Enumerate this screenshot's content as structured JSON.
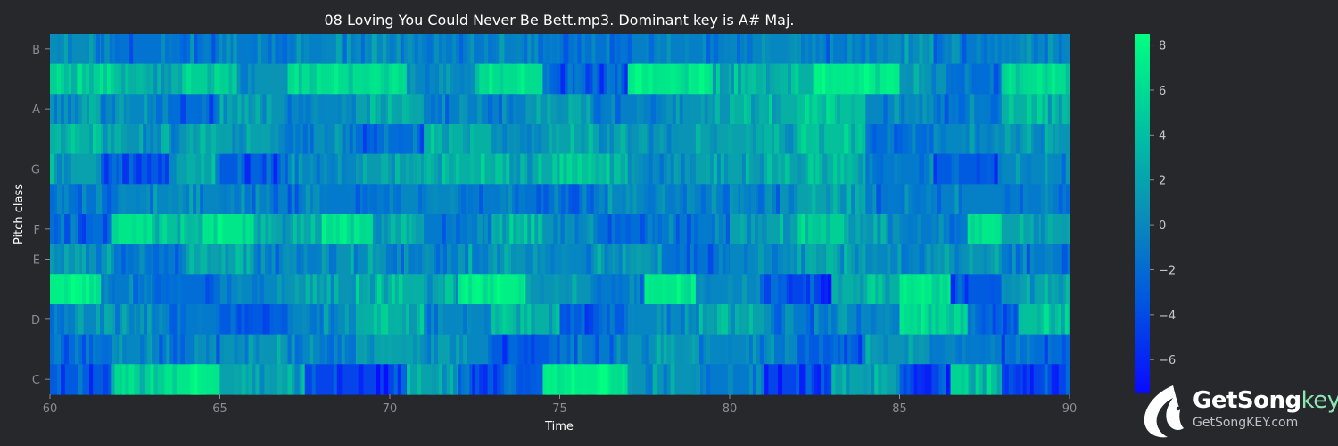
{
  "chart_data": {
    "type": "heatmap",
    "title": "08 Loving You Could Never Be Bett.mp3. Dominant key is A# Maj.",
    "xlabel": "Time",
    "ylabel": "Pitch class",
    "xlim": [
      60,
      90
    ],
    "x_ticks": [
      "60",
      "65",
      "70",
      "75",
      "80",
      "85",
      "90"
    ],
    "pitch_classes": [
      "C",
      "C#",
      "D",
      "D#",
      "E",
      "F",
      "F#",
      "G",
      "G#",
      "A",
      "A#",
      "B"
    ],
    "y_tick_labels": [
      {
        "index": 0,
        "label": "C"
      },
      {
        "index": 2,
        "label": "D"
      },
      {
        "index": 4,
        "label": "E"
      },
      {
        "index": 5,
        "label": "F"
      },
      {
        "index": 7,
        "label": "G"
      },
      {
        "index": 9,
        "label": "A"
      },
      {
        "index": 11,
        "label": "B"
      }
    ],
    "colorbar": {
      "range": [
        -7.5,
        8.5
      ],
      "ticks": [
        "8",
        "6",
        "4",
        "2",
        "0",
        "−2",
        "−4",
        "−6"
      ],
      "tick_values": [
        8,
        6,
        4,
        2,
        0,
        -2,
        -4,
        -6
      ],
      "colormap": [
        "#0a0aff",
        "#0066dd",
        "#0a9ab0",
        "#00d890",
        "#00ff80"
      ]
    },
    "segments": [
      {
        "pitch": "B",
        "blocks": [
          [
            60,
            61.5,
            -0.5
          ],
          [
            61.5,
            63.5,
            -2.5
          ],
          [
            63.5,
            66,
            -2
          ],
          [
            66,
            68,
            -1.5
          ],
          [
            68,
            71,
            -1
          ],
          [
            71,
            73,
            -2
          ],
          [
            73,
            75,
            -1.5
          ],
          [
            75,
            77,
            -2.5
          ],
          [
            77,
            80,
            -1.5
          ],
          [
            80,
            82,
            -1
          ],
          [
            82,
            84,
            -2
          ],
          [
            84,
            86,
            -0.5
          ],
          [
            86,
            88,
            -2
          ],
          [
            88,
            90,
            -1
          ]
        ]
      },
      {
        "pitch": "A#",
        "blocks": [
          [
            60,
            62,
            4
          ],
          [
            62,
            64,
            2
          ],
          [
            64,
            65.5,
            4
          ],
          [
            65.5,
            67,
            0
          ],
          [
            67,
            70.5,
            5
          ],
          [
            70.5,
            72.5,
            -1
          ],
          [
            72.5,
            74.5,
            5
          ],
          [
            74.5,
            77,
            -4
          ],
          [
            77,
            79.5,
            6
          ],
          [
            79.5,
            82.5,
            2
          ],
          [
            82.5,
            85,
            6.5
          ],
          [
            85,
            86.5,
            0
          ],
          [
            86.5,
            88,
            -3
          ],
          [
            88,
            90,
            5
          ]
        ]
      },
      {
        "pitch": "A",
        "blocks": [
          [
            60,
            61.5,
            0
          ],
          [
            61.5,
            63,
            -1
          ],
          [
            63,
            65,
            -3
          ],
          [
            65,
            67,
            0
          ],
          [
            67,
            69,
            -1
          ],
          [
            69,
            71,
            1
          ],
          [
            71,
            74,
            -1.5
          ],
          [
            74,
            76,
            0
          ],
          [
            76,
            78,
            -1.5
          ],
          [
            78,
            80,
            0
          ],
          [
            80,
            82,
            2
          ],
          [
            82,
            84,
            3
          ],
          [
            84,
            86,
            -1
          ],
          [
            86,
            88,
            -2
          ],
          [
            88,
            90,
            2
          ]
        ]
      },
      {
        "pitch": "G#",
        "blocks": [
          [
            60,
            62,
            2
          ],
          [
            62,
            64,
            0
          ],
          [
            64,
            66.5,
            1
          ],
          [
            66.5,
            69,
            -1
          ],
          [
            69,
            71,
            -3
          ],
          [
            71,
            73,
            2
          ],
          [
            73,
            75,
            0
          ],
          [
            75,
            77,
            1
          ],
          [
            77,
            79,
            0
          ],
          [
            79,
            82,
            1
          ],
          [
            82,
            84,
            3
          ],
          [
            84,
            86,
            -3
          ],
          [
            86,
            88,
            -1
          ],
          [
            88,
            90,
            0
          ]
        ]
      },
      {
        "pitch": "G",
        "blocks": [
          [
            60,
            61.5,
            1
          ],
          [
            61.5,
            63.5,
            -4
          ],
          [
            63.5,
            65,
            1
          ],
          [
            65,
            67,
            -4
          ],
          [
            67,
            69,
            -1
          ],
          [
            69,
            71,
            0.5
          ],
          [
            71,
            73,
            2
          ],
          [
            73,
            75,
            1.5
          ],
          [
            75,
            77,
            3
          ],
          [
            77,
            79,
            -1
          ],
          [
            79,
            82,
            1
          ],
          [
            82,
            84,
            2
          ],
          [
            84,
            86,
            -2
          ],
          [
            86,
            88,
            -4
          ],
          [
            88,
            90,
            -1
          ]
        ]
      },
      {
        "pitch": "F#",
        "blocks": [
          [
            60,
            62,
            -2.5
          ],
          [
            62,
            65,
            -1
          ],
          [
            65,
            67,
            -1.5
          ],
          [
            67,
            70,
            -2
          ],
          [
            70,
            72,
            -1
          ],
          [
            72,
            74,
            -2
          ],
          [
            74,
            76,
            -2.5
          ],
          [
            76,
            78,
            -1
          ],
          [
            78,
            80,
            -1.5
          ],
          [
            80,
            82,
            -2
          ],
          [
            82,
            84,
            1
          ],
          [
            84,
            86,
            -2
          ],
          [
            86,
            88,
            -1.5
          ],
          [
            88,
            90,
            -2
          ]
        ]
      },
      {
        "pitch": "F",
        "blocks": [
          [
            60,
            61.8,
            -3
          ],
          [
            61.8,
            63,
            6
          ],
          [
            63,
            64.5,
            3
          ],
          [
            64.5,
            66,
            6
          ],
          [
            66,
            68,
            1
          ],
          [
            68,
            69.5,
            5
          ],
          [
            69.5,
            71,
            1
          ],
          [
            71,
            73,
            -2
          ],
          [
            73,
            74.5,
            2
          ],
          [
            74.5,
            76,
            0
          ],
          [
            76,
            78,
            -3
          ],
          [
            78,
            80,
            -2
          ],
          [
            80,
            82,
            1
          ],
          [
            82,
            83.5,
            4
          ],
          [
            83.5,
            85,
            0
          ],
          [
            85,
            87,
            -2
          ],
          [
            87,
            88,
            6
          ],
          [
            88,
            90,
            1
          ]
        ]
      },
      {
        "pitch": "E",
        "blocks": [
          [
            60,
            62,
            0
          ],
          [
            62,
            64,
            -2
          ],
          [
            64,
            66,
            1
          ],
          [
            66,
            68,
            -1.5
          ],
          [
            68,
            70,
            0
          ],
          [
            70,
            72,
            -2
          ],
          [
            72,
            74,
            0
          ],
          [
            74,
            76,
            -1
          ],
          [
            76,
            78,
            0.5
          ],
          [
            78,
            80,
            -2.5
          ],
          [
            80,
            82,
            -1
          ],
          [
            82,
            84,
            0.5
          ],
          [
            84,
            86,
            -1
          ],
          [
            86,
            88,
            0
          ],
          [
            88,
            90,
            -2
          ]
        ]
      },
      {
        "pitch": "D#",
        "blocks": [
          [
            60,
            61.5,
            7
          ],
          [
            61.5,
            63,
            -2
          ],
          [
            63,
            65,
            -3
          ],
          [
            65,
            67,
            -1
          ],
          [
            67,
            69,
            0
          ],
          [
            69,
            71,
            2
          ],
          [
            71,
            72,
            1
          ],
          [
            72,
            74,
            7
          ],
          [
            74,
            76,
            0
          ],
          [
            76,
            77.5,
            -2
          ],
          [
            77.5,
            79,
            6
          ],
          [
            79,
            81,
            -1
          ],
          [
            81,
            83,
            -5
          ],
          [
            83,
            85,
            2
          ],
          [
            85,
            86.5,
            6
          ],
          [
            86.5,
            88,
            -4
          ],
          [
            88,
            90,
            1
          ]
        ]
      },
      {
        "pitch": "D",
        "blocks": [
          [
            60,
            61.5,
            -1
          ],
          [
            61.5,
            63,
            0
          ],
          [
            63,
            65,
            -2
          ],
          [
            65,
            67,
            -4
          ],
          [
            67,
            69,
            -1
          ],
          [
            69,
            71,
            2
          ],
          [
            71,
            73,
            -1
          ],
          [
            73,
            75,
            2
          ],
          [
            75,
            77,
            -4
          ],
          [
            77,
            79,
            -1
          ],
          [
            79,
            81,
            1
          ],
          [
            81,
            83,
            -2
          ],
          [
            83,
            85,
            -1
          ],
          [
            85,
            87,
            5
          ],
          [
            87,
            88.5,
            -3
          ],
          [
            88.5,
            90,
            3
          ]
        ]
      },
      {
        "pitch": "C#",
        "blocks": [
          [
            60,
            61.5,
            -3
          ],
          [
            61.5,
            63,
            -1
          ],
          [
            63,
            65,
            -2
          ],
          [
            65,
            67,
            0
          ],
          [
            67,
            69,
            -1
          ],
          [
            69,
            71,
            1
          ],
          [
            71,
            73,
            -1
          ],
          [
            73,
            75,
            -4
          ],
          [
            75,
            77,
            -2
          ],
          [
            77,
            79,
            0
          ],
          [
            79,
            82,
            -1
          ],
          [
            82,
            84,
            -4
          ],
          [
            84,
            86,
            0
          ],
          [
            86,
            88,
            -2
          ],
          [
            88,
            90,
            -3
          ]
        ]
      },
      {
        "pitch": "C",
        "blocks": [
          [
            60,
            61.8,
            -4
          ],
          [
            61.8,
            63.5,
            4
          ],
          [
            63.5,
            65,
            6
          ],
          [
            65,
            67.5,
            1
          ],
          [
            67.5,
            70.5,
            -5
          ],
          [
            70.5,
            72,
            1
          ],
          [
            72,
            74.5,
            -4
          ],
          [
            74.5,
            77,
            6.5
          ],
          [
            77,
            79,
            0
          ],
          [
            79,
            81,
            -2
          ],
          [
            81,
            83,
            -5
          ],
          [
            83,
            85,
            1
          ],
          [
            85,
            86.5,
            -5
          ],
          [
            86.5,
            88,
            3
          ],
          [
            88,
            90,
            -5
          ]
        ]
      }
    ]
  },
  "logo": {
    "brand_main": "GetSong",
    "brand_accent": "key",
    "site": "GetSongKEY.com"
  }
}
